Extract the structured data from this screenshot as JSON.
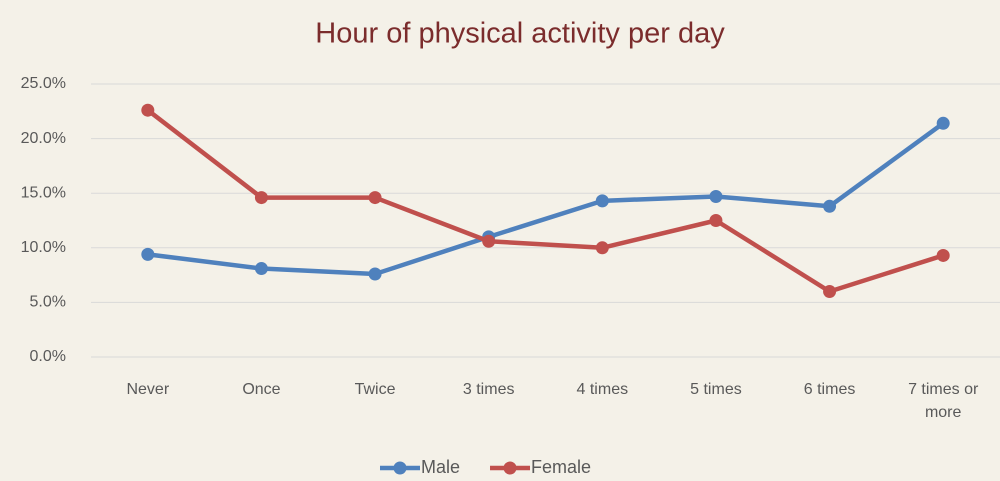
{
  "chart_data": {
    "type": "line",
    "title": "Hour of physical activity per day",
    "categories": [
      "Never",
      "Once",
      "Twice",
      "3 times",
      "4 times",
      "5 times",
      "6 times",
      "7 times or more"
    ],
    "series": [
      {
        "name": "Male",
        "color": "#4f81bd",
        "values": [
          9.4,
          8.1,
          7.6,
          11.0,
          14.3,
          14.7,
          13.8,
          21.4
        ]
      },
      {
        "name": "Female",
        "color": "#c0504d",
        "values": [
          22.6,
          14.6,
          14.6,
          10.6,
          10.0,
          12.5,
          6.0,
          9.3
        ]
      }
    ],
    "ylim": [
      0,
      25
    ],
    "yticks": [
      {
        "value": 0,
        "label": "0.0%"
      },
      {
        "value": 5,
        "label": "5.0%"
      },
      {
        "value": 10,
        "label": "10.0%"
      },
      {
        "value": 15,
        "label": "15.0%"
      },
      {
        "value": 20,
        "label": "20.0%"
      },
      {
        "value": 25,
        "label": "25.0%"
      }
    ],
    "grid": true,
    "legend": "bottom"
  }
}
